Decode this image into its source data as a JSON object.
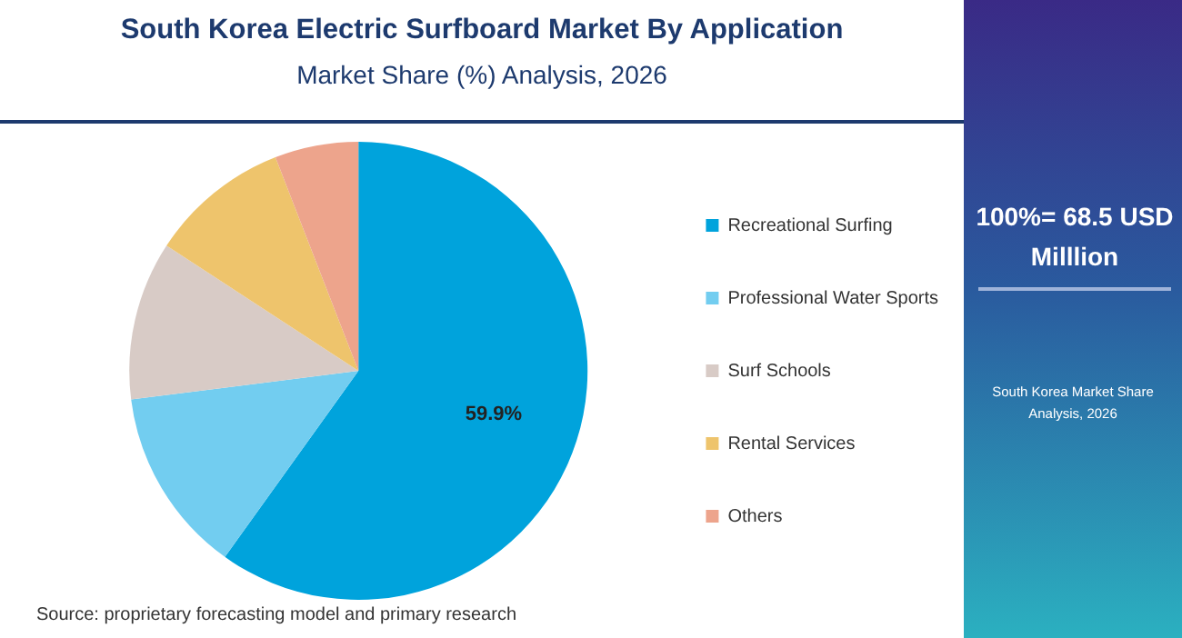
{
  "chart_data": {
    "type": "pie",
    "title": "South Korea Electric Surfboard Market By Application",
    "subtitle": "Market Share (%) Analysis, 2026",
    "categories": [
      "Recreational Surfing",
      "Professional Water Sports",
      "Surf Schools",
      "Rental Services",
      "Others"
    ],
    "values": [
      59.9,
      13.1,
      11.2,
      9.9,
      5.9
    ],
    "colors": [
      "#00a3dc",
      "#72cdf0",
      "#d8cbc6",
      "#eec46c",
      "#eda48c"
    ],
    "value_labels": [
      "59.9%",
      null,
      null,
      null,
      null
    ],
    "legend": "right",
    "annotations": [
      "100%= 68.5 USD Milllion",
      "South Korea Market Share Analysis, 2026",
      "Source: proprietary forecasting model and primary research"
    ]
  }
}
